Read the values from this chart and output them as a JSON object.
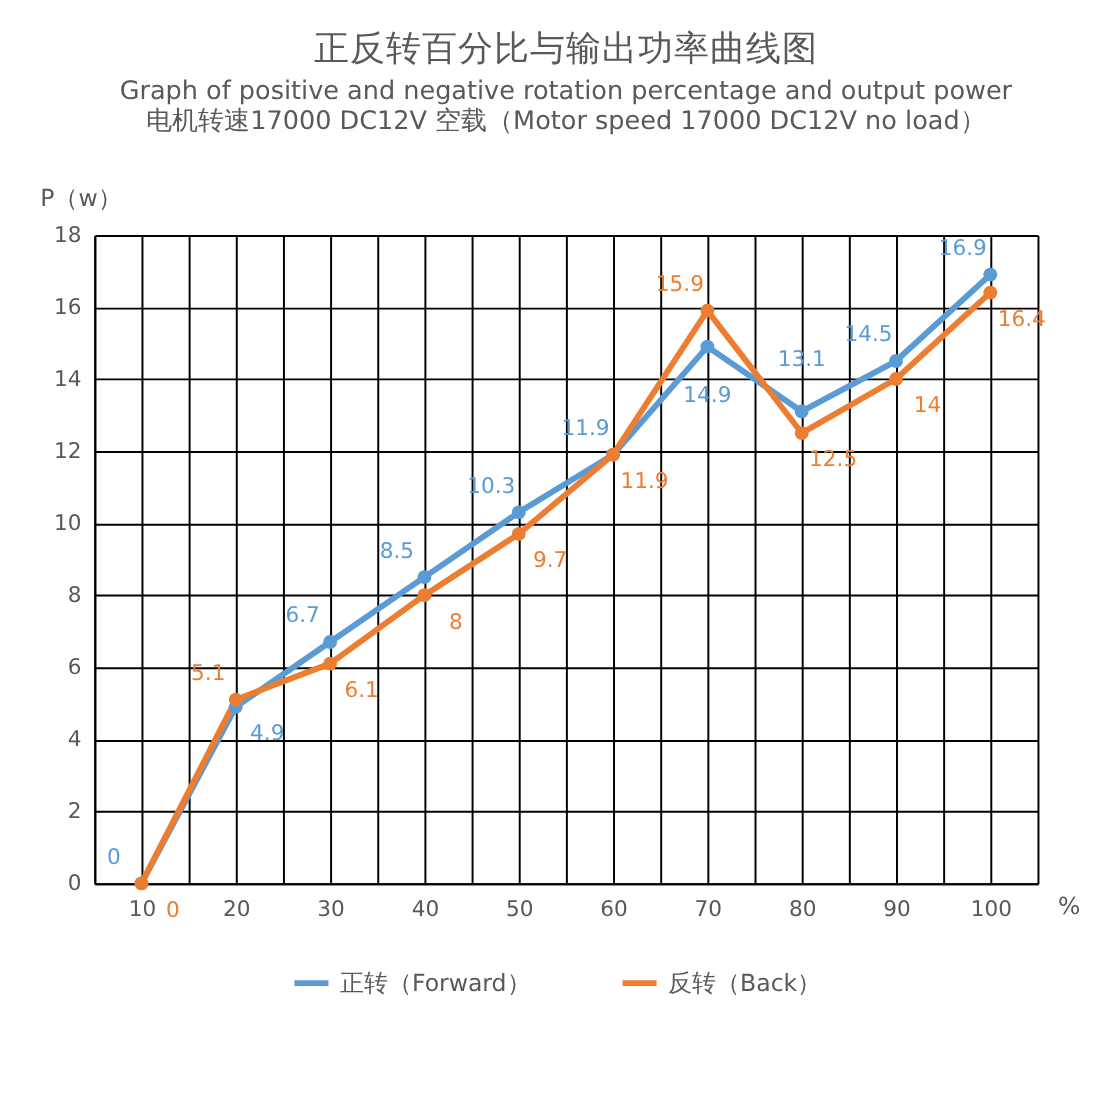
{
  "chart_data": {
    "type": "line",
    "title": "正反转百分比与输出功率曲线图",
    "subtitle": "Graph of positive and negative rotation percentage and output power\n电机转速17000   DC12V  空载（Motor speed 17000 DC12V no load）",
    "xlabel": "%",
    "ylabel": "P（w）",
    "x": [
      10,
      20,
      30,
      40,
      50,
      60,
      70,
      80,
      90,
      100
    ],
    "xlim": [
      5,
      105
    ],
    "xticks": [
      {
        "value": 5,
        "label": null
      },
      10,
      {
        "value": 15,
        "label": null
      },
      20,
      {
        "value": 25,
        "label": null
      },
      30,
      {
        "value": 35,
        "label": null
      },
      40,
      {
        "value": 45,
        "label": null
      },
      50,
      {
        "value": 55,
        "label": null
      },
      60,
      {
        "value": 65,
        "label": null
      },
      70,
      {
        "value": 75,
        "label": null
      },
      80,
      {
        "value": 85,
        "label": null
      },
      90,
      {
        "value": 95,
        "label": null
      },
      100,
      {
        "value": 105,
        "label": null
      }
    ],
    "ylim": [
      0,
      18
    ],
    "yticks": [
      0,
      2,
      4,
      6,
      8,
      10,
      12,
      14,
      16,
      18
    ],
    "series": [
      {
        "name": "正转（Forward）",
        "color": "#5b9bd5",
        "values": [
          0,
          4.9,
          6.7,
          8.5,
          10.3,
          11.9,
          14.9,
          13.1,
          14.5,
          16.9
        ]
      },
      {
        "name": "反转（Back）",
        "color": "#ed7d31",
        "values": [
          0,
          5.1,
          6.1,
          8,
          9.7,
          11.9,
          15.9,
          12.5,
          14,
          16.4
        ]
      }
    ],
    "marker": "circle",
    "line_style": "solid",
    "grid": true,
    "legend": "bottom",
    "data_labels": true
  }
}
